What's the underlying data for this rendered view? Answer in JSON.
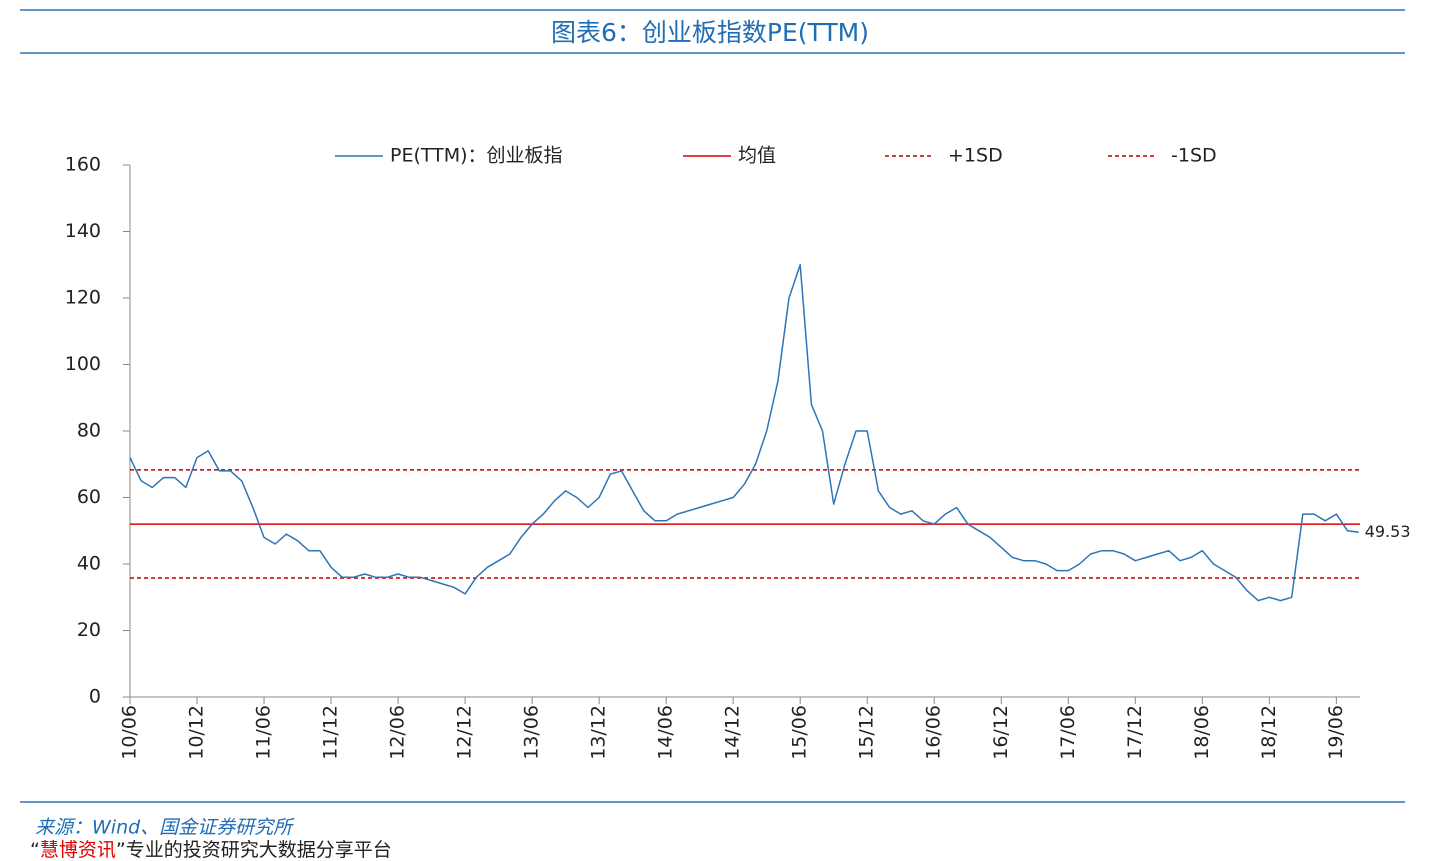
{
  "title": "图表6：创业板指数PE(TTM)",
  "source": "来源：Wind、国金证券研究所",
  "footer": [
    "“",
    "慧博资讯",
    "”专业的投资研究大数据分享平台"
  ],
  "chart_data": {
    "type": "line",
    "x": [
      "10/06",
      "10/07",
      "10/08",
      "10/09",
      "10/10",
      "10/11",
      "10/12",
      "11/01",
      "11/02",
      "11/03",
      "11/04",
      "11/05",
      "11/06",
      "11/07",
      "11/08",
      "11/09",
      "11/10",
      "11/11",
      "11/12",
      "12/01",
      "12/02",
      "12/03",
      "12/04",
      "12/05",
      "12/06",
      "12/07",
      "12/08",
      "12/09",
      "12/10",
      "12/11",
      "12/12",
      "13/01",
      "13/02",
      "13/03",
      "13/04",
      "13/05",
      "13/06",
      "13/07",
      "13/08",
      "13/09",
      "13/10",
      "13/11",
      "13/12",
      "14/01",
      "14/02",
      "14/03",
      "14/04",
      "14/05",
      "14/06",
      "14/07",
      "14/08",
      "14/09",
      "14/10",
      "14/11",
      "14/12",
      "15/01",
      "15/02",
      "15/03",
      "15/04",
      "15/05",
      "15/06",
      "15/07",
      "15/08",
      "15/09",
      "15/10",
      "15/11",
      "15/12",
      "16/01",
      "16/02",
      "16/03",
      "16/04",
      "16/05",
      "16/06",
      "16/07",
      "16/08",
      "16/09",
      "16/10",
      "16/11",
      "16/12",
      "17/01",
      "17/02",
      "17/03",
      "17/04",
      "17/05",
      "17/06",
      "17/07",
      "17/08",
      "17/09",
      "17/10",
      "17/11",
      "17/12",
      "18/01",
      "18/02",
      "18/03",
      "18/04",
      "18/05",
      "18/06",
      "18/07",
      "18/08",
      "18/09",
      "18/10",
      "18/11",
      "18/12",
      "19/01",
      "19/02",
      "19/03",
      "19/04",
      "19/05",
      "19/06",
      "19/07",
      "19/08"
    ],
    "series": [
      {
        "name": "PE(TTM)：创业板指",
        "color": "#2e75b6",
        "values": [
          72,
          65,
          63,
          66,
          66,
          63,
          72,
          74,
          68,
          68,
          65,
          57,
          48,
          46,
          49,
          47,
          44,
          44,
          39,
          36,
          36,
          37,
          36,
          36,
          37,
          36,
          36,
          35,
          34,
          33,
          31,
          36,
          39,
          41,
          43,
          48,
          52,
          55,
          59,
          62,
          60,
          57,
          60,
          67,
          68,
          62,
          56,
          53,
          53,
          55,
          56,
          57,
          58,
          59,
          60,
          64,
          70,
          80,
          95,
          120,
          130,
          88,
          80,
          58,
          70,
          80,
          80,
          62,
          57,
          55,
          56,
          53,
          52,
          55,
          57,
          52,
          50,
          48,
          45,
          42,
          41,
          41,
          40,
          38,
          38,
          40,
          43,
          44,
          44,
          43,
          41,
          42,
          43,
          44,
          41,
          42,
          44,
          40,
          38,
          36,
          32,
          29,
          30,
          29,
          30,
          55,
          55,
          53,
          55,
          50,
          49.53
        ]
      }
    ],
    "reference_lines": [
      {
        "name": "均值",
        "value": 52,
        "color": "#e00000",
        "dashed": false
      },
      {
        "name": "+1SD",
        "value": 68.3,
        "color": "#c00000",
        "dashed": true
      },
      {
        "name": "-1SD",
        "value": 35.8,
        "color": "#c00000",
        "dashed": true
      }
    ],
    "ylim": [
      0,
      160
    ],
    "yticks": [
      0,
      20,
      40,
      60,
      80,
      100,
      120,
      140,
      160
    ],
    "xticks": [
      "10/06",
      "10/12",
      "11/06",
      "11/12",
      "12/06",
      "12/12",
      "13/06",
      "13/12",
      "14/06",
      "14/12",
      "15/06",
      "15/12",
      "16/06",
      "16/12",
      "17/06",
      "17/12",
      "18/06",
      "18/12",
      "19/06"
    ],
    "grid": false
  }
}
